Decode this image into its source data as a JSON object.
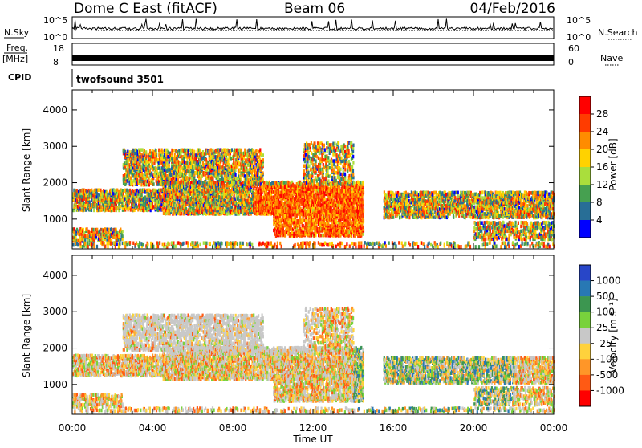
{
  "header": {
    "station": "Dome C East (fitACF)",
    "beam": "Beam 06",
    "date": "04/Feb/2016"
  },
  "params": {
    "nsky_label": "N.Sky",
    "nsearch_label": "N.Search",
    "freq_label_top": "Freq.",
    "freq_label_unit": "[MHz]",
    "nave_label": "Nave",
    "cpid_label": "CPID",
    "cpid_value": "twofsound 3501",
    "nsky_ticks": [
      "10^5",
      "10^0"
    ],
    "nsearch_ticks": [
      "10^5",
      "10^0"
    ],
    "freq_ticks": [
      "18",
      "8"
    ],
    "nave_ticks": [
      "60",
      "0"
    ]
  },
  "chart_data": [
    {
      "type": "heatmap",
      "name": "power",
      "ylabel": "Slant Range [km]",
      "yticks": [
        1000,
        2000,
        3000,
        4000
      ],
      "ylim": [
        180,
        4550
      ],
      "xlim": [
        0,
        24
      ],
      "colorbar_label": "Power [dB]",
      "colorbar_ticks": [
        "28",
        "24",
        "20",
        "16",
        "12",
        "8",
        "4"
      ],
      "colorbar_colors": [
        "#ff0000",
        "#ff3c00",
        "#ff8c00",
        "#ffd200",
        "#aade3c",
        "#46a050",
        "#286e96",
        "#0000ff"
      ]
    },
    {
      "type": "heatmap",
      "name": "velocity",
      "ylabel": "Slant Range [km]",
      "yticks": [
        1000,
        2000,
        3000,
        4000
      ],
      "ylim": [
        180,
        4550
      ],
      "xlim": [
        0,
        24
      ],
      "colorbar_label": "Velocity [m s⁻¹]",
      "colorbar_ticks": [
        "1000",
        "500",
        "100",
        "25",
        "-25",
        "-100",
        "-500",
        "-1000"
      ],
      "colorbar_colors": [
        "#2846c8",
        "#2878b4",
        "#3c9650",
        "#78d23c",
        "#c8c8c8",
        "#ffd23c",
        "#ff9628",
        "#ff5a14",
        "#ff0000"
      ]
    }
  ],
  "xaxis": {
    "label": "Time UT",
    "ticks": [
      "00:00",
      "04:00",
      "08:00",
      "12:00",
      "16:00",
      "20:00",
      "00:00"
    ]
  }
}
